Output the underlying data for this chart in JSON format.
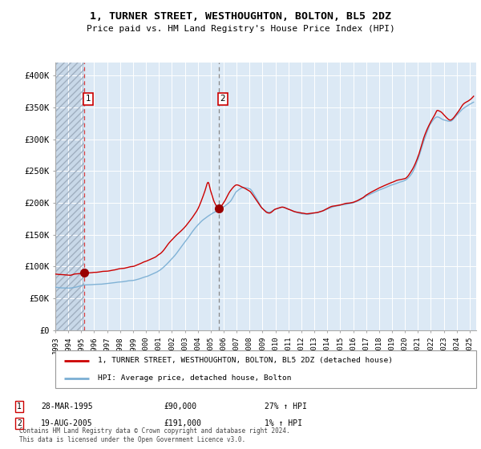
{
  "title": "1, TURNER STREET, WESTHOUGHTON, BOLTON, BL5 2DZ",
  "subtitle": "Price paid vs. HM Land Registry's House Price Index (HPI)",
  "sale1_date": 1995.24,
  "sale1_price": 90000,
  "sale1_label": "1",
  "sale1_text": "28-MAR-1995",
  "sale1_amount": "£90,000",
  "sale1_pct": "27% ↑ HPI",
  "sale2_date": 2005.63,
  "sale2_price": 191000,
  "sale2_label": "2",
  "sale2_text": "19-AUG-2005",
  "sale2_amount": "£191,000",
  "sale2_pct": "1% ↑ HPI",
  "hpi_color": "#7bafd4",
  "price_color": "#cc0000",
  "marker_color": "#990000",
  "bg_color": "#dce9f5",
  "hatch_bg_color": "#c8d8e8",
  "grid_color": "#ffffff",
  "ylim": [
    0,
    420000
  ],
  "xlim_start": 1993.0,
  "xlim_end": 2025.5,
  "legend_label1": "1, TURNER STREET, WESTHOUGHTON, BOLTON, BL5 2DZ (detached house)",
  "legend_label2": "HPI: Average price, detached house, Bolton",
  "footer": "Contains HM Land Registry data © Crown copyright and database right 2024.\nThis data is licensed under the Open Government Licence v3.0.",
  "yticks": [
    0,
    50000,
    100000,
    150000,
    200000,
    250000,
    300000,
    350000,
    400000
  ],
  "ytick_labels": [
    "£0",
    "£50K",
    "£100K",
    "£150K",
    "£200K",
    "£250K",
    "£300K",
    "£350K",
    "£400K"
  ],
  "xticks": [
    1993,
    1994,
    1995,
    1996,
    1997,
    1998,
    1999,
    2000,
    2001,
    2002,
    2003,
    2004,
    2005,
    2006,
    2007,
    2008,
    2009,
    2010,
    2011,
    2012,
    2013,
    2014,
    2015,
    2016,
    2017,
    2018,
    2019,
    2020,
    2021,
    2022,
    2023,
    2024,
    2025
  ]
}
